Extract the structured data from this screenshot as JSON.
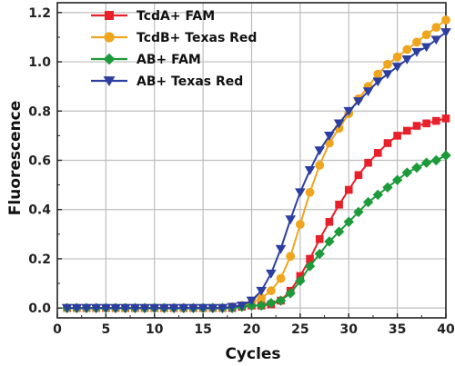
{
  "chart_data": {
    "type": "line",
    "xlabel": "Cycles",
    "ylabel": "Fluorescence",
    "xlim": [
      0,
      40
    ],
    "ylim": [
      -0.04,
      1.24
    ],
    "xticks": [
      0,
      5,
      10,
      15,
      20,
      25,
      30,
      35,
      40
    ],
    "yticks": [
      0.0,
      0.2,
      0.4,
      0.6,
      0.8,
      1.0,
      1.2
    ],
    "xtick_labels": [
      "0",
      "5",
      "10",
      "15",
      "20",
      "25",
      "30",
      "35",
      "40"
    ],
    "ytick_labels": [
      "0.0",
      "0.2",
      "0.4",
      "0.6",
      "0.8",
      "1.0",
      "1.2"
    ],
    "grid": true,
    "legend_position": "top-left",
    "x": [
      1,
      2,
      3,
      4,
      5,
      6,
      7,
      8,
      9,
      10,
      11,
      12,
      13,
      14,
      15,
      16,
      17,
      18,
      19,
      20,
      21,
      22,
      23,
      24,
      25,
      26,
      27,
      28,
      29,
      30,
      31,
      32,
      33,
      34,
      35,
      36,
      37,
      38,
      39,
      40
    ],
    "series": [
      {
        "name": "TcdA+ FAM",
        "color": "#e8202a",
        "marker": "square",
        "values": [
          0,
          0,
          0,
          0,
          0,
          0,
          0,
          0,
          0,
          0,
          0,
          0,
          0,
          0,
          0,
          0,
          0,
          0,
          0.005,
          0.01,
          0.01,
          0.015,
          0.03,
          0.07,
          0.13,
          0.2,
          0.28,
          0.35,
          0.42,
          0.48,
          0.54,
          0.59,
          0.63,
          0.67,
          0.7,
          0.72,
          0.74,
          0.75,
          0.76,
          0.77
        ]
      },
      {
        "name": "TcdB+ Texas Red",
        "color": "#f0a51e",
        "marker": "circle",
        "values": [
          0,
          0,
          0,
          0,
          0,
          0,
          0,
          0,
          0,
          0,
          0,
          0,
          0,
          0,
          0,
          0,
          0,
          0.005,
          0.01,
          0.02,
          0.04,
          0.07,
          0.12,
          0.21,
          0.34,
          0.47,
          0.58,
          0.67,
          0.73,
          0.79,
          0.85,
          0.9,
          0.95,
          0.99,
          1.02,
          1.05,
          1.08,
          1.11,
          1.14,
          1.17
        ]
      },
      {
        "name": "AB+ FAM",
        "color": "#1d9a3a",
        "marker": "diamond",
        "values": [
          0,
          0,
          0,
          0,
          0,
          0,
          0,
          0,
          0,
          0,
          0,
          0,
          0,
          0,
          0,
          0,
          0,
          0,
          0.005,
          0.01,
          0.01,
          0.02,
          0.03,
          0.06,
          0.11,
          0.17,
          0.22,
          0.27,
          0.31,
          0.35,
          0.39,
          0.43,
          0.46,
          0.49,
          0.52,
          0.55,
          0.57,
          0.59,
          0.6,
          0.62
        ]
      },
      {
        "name": "AB+ Texas Red",
        "color": "#2c3fa0",
        "marker": "triangle-down",
        "values": [
          0,
          0,
          0,
          0,
          0,
          0,
          0,
          0,
          0,
          0,
          0,
          0,
          0,
          0,
          0,
          0,
          0,
          0.005,
          0.01,
          0.03,
          0.07,
          0.14,
          0.24,
          0.36,
          0.47,
          0.56,
          0.64,
          0.7,
          0.75,
          0.8,
          0.84,
          0.88,
          0.92,
          0.95,
          0.98,
          1.01,
          1.04,
          1.06,
          1.09,
          1.12
        ]
      }
    ]
  }
}
